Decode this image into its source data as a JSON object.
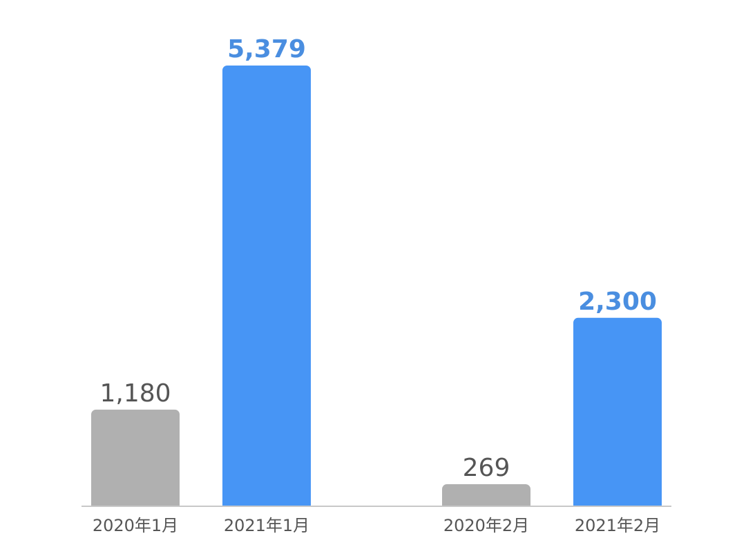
{
  "chart_data": {
    "type": "bar",
    "categories": [
      "2020年1月",
      "2021年1月",
      "2020年2月",
      "2021年2月"
    ],
    "values": [
      1180,
      5379,
      269,
      2300
    ],
    "value_labels": [
      "1,180",
      "5,379",
      "269",
      "2,300"
    ],
    "colors": [
      "#b0b0b0",
      "#4795f5",
      "#b0b0b0",
      "#4795f5"
    ],
    "label_colors": [
      "#555555",
      "#4a8ee0",
      "#555555",
      "#4a8ee0"
    ],
    "title": "",
    "xlabel": "",
    "ylabel": "",
    "ylim": [
      0,
      5600
    ],
    "grid": false,
    "legend": "none"
  }
}
